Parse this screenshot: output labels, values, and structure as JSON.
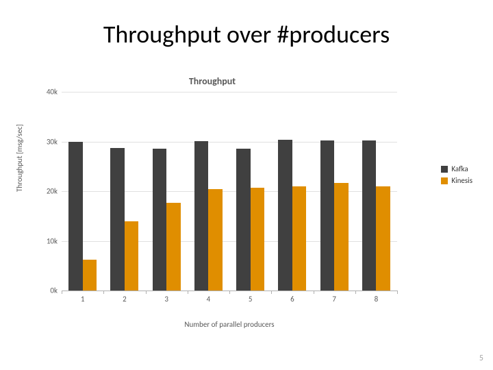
{
  "slide": {
    "title": "Throughput over #producers",
    "page_number": "5"
  },
  "chart": {
    "type": "bar",
    "title": "Throughput",
    "title_fontsize": 14,
    "title_color": "#595959",
    "xlabel": "Number of parallel producers",
    "ylabel": "Throughput [msg/sec]",
    "label_fontsize": 11,
    "label_color": "#595959",
    "background_color": "#ffffff",
    "grid_color": "#e0e0e0",
    "axis_color": "#b0b0b0",
    "categories": [
      "1",
      "2",
      "3",
      "4",
      "5",
      "6",
      "7",
      "8"
    ],
    "ylim": [
      0,
      40000
    ],
    "ytick_step": 10000,
    "yticks": [
      "0k",
      "10k",
      "20k",
      "30k",
      "40k"
    ],
    "series": [
      {
        "name": "Kafka",
        "color": "#404040",
        "values": [
          30000,
          28700,
          28600,
          30100,
          28500,
          30300,
          30200,
          30200
        ]
      },
      {
        "name": "Kinesis",
        "color": "#e08e00",
        "values": [
          6200,
          14000,
          17600,
          20400,
          20700,
          21000,
          21700,
          20900
        ]
      }
    ],
    "bar_width_ratio": 0.335,
    "group_gap_ratio": 0.06
  }
}
